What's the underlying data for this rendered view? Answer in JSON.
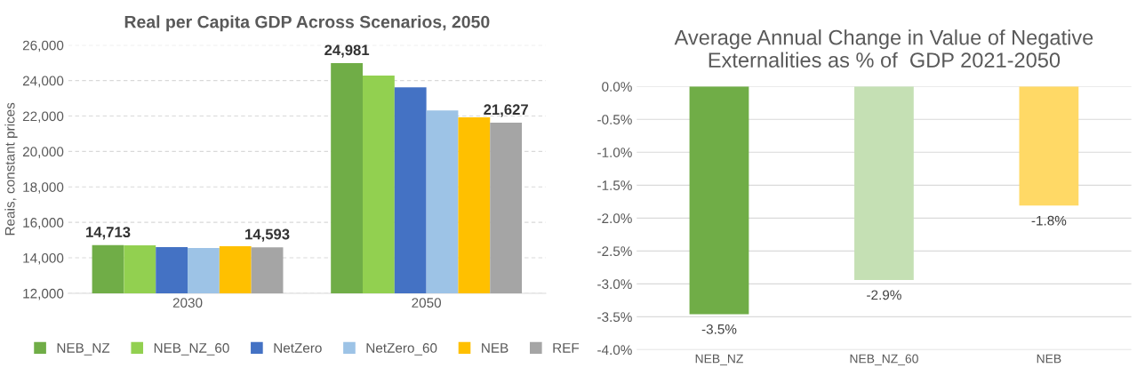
{
  "chart_data": [
    {
      "type": "bar",
      "title": "Real per Capita GDP Across Scenarios, 2050",
      "ylabel": "Reais, constant prices",
      "categories": [
        "2030",
        "2050"
      ],
      "series": [
        {
          "name": "NEB_NZ",
          "color": "#70ad47",
          "values": [
            14713,
            24981
          ],
          "value_labels": [
            "14,713",
            "24,981"
          ]
        },
        {
          "name": "NEB_NZ_60",
          "color": "#92d050",
          "values": [
            14700,
            24280
          ],
          "value_labels": [
            null,
            null
          ]
        },
        {
          "name": "NetZero",
          "color": "#4472c4",
          "values": [
            14600,
            23620
          ],
          "value_labels": [
            null,
            null
          ]
        },
        {
          "name": "NetZero_60",
          "color": "#9dc3e6",
          "values": [
            14550,
            22320
          ],
          "value_labels": [
            null,
            null
          ]
        },
        {
          "name": "NEB",
          "color": "#ffc000",
          "values": [
            14650,
            21920
          ],
          "value_labels": [
            null,
            null
          ]
        },
        {
          "name": "REF",
          "color": "#a5a5a5",
          "values": [
            14593,
            21627
          ],
          "value_labels": [
            "14,593",
            "21,627"
          ]
        }
      ],
      "ylim": [
        12000,
        26000
      ],
      "yticks": [
        {
          "value": 12000,
          "label": "12,000"
        },
        {
          "value": 14000,
          "label": "14,000"
        },
        {
          "value": 16000,
          "label": "16,000"
        },
        {
          "value": 18000,
          "label": "18,000"
        },
        {
          "value": 20000,
          "label": "20,000"
        },
        {
          "value": 22000,
          "label": "22,000"
        },
        {
          "value": 24000,
          "label": "24,000"
        },
        {
          "value": 26000,
          "label": "26,000"
        }
      ],
      "grid": "y",
      "legend": "bottom"
    },
    {
      "type": "bar",
      "title": "Average Annual Change in Value of Negative Externalities as % of  GDP 2021-2050",
      "categories": [
        "NEB_NZ",
        "NEB_NZ_60",
        "NEB"
      ],
      "values": [
        -3.46,
        -2.94,
        -1.81
      ],
      "colors": [
        "#70ad47",
        "#c5e0b4",
        "#ffd966"
      ],
      "value_labels": [
        "-3.5%",
        "-2.9%",
        "-1.8%"
      ],
      "ylim": [
        -4.0,
        0.0
      ],
      "yticks": [
        {
          "value": 0,
          "label": "0.0%"
        },
        {
          "value": -0.5,
          "label": "-0.5%"
        },
        {
          "value": -1.0,
          "label": "-1.0%"
        },
        {
          "value": -1.5,
          "label": "-1.5%"
        },
        {
          "value": -2.0,
          "label": "-2.0%"
        },
        {
          "value": -2.5,
          "label": "-2.5%"
        },
        {
          "value": -3.0,
          "label": "-3.0%"
        },
        {
          "value": -3.5,
          "label": "-3.5%"
        },
        {
          "value": -4.0,
          "label": "-4.0%"
        }
      ],
      "grid": "y"
    }
  ]
}
